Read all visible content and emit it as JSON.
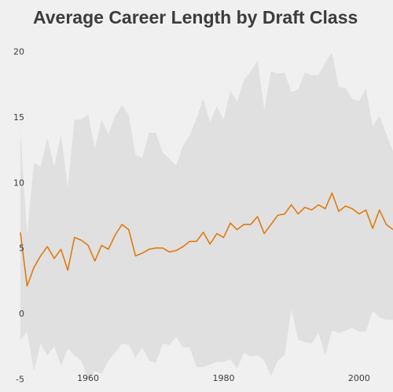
{
  "chart_data": {
    "type": "area",
    "title": "Average Career Length by Draft Class",
    "xlabel": "",
    "ylabel": "",
    "xlim": [
      1947,
      2005
    ],
    "ylim": [
      -6,
      21
    ],
    "xticks": [
      1960,
      1980,
      2000
    ],
    "yticks": [
      -5,
      0,
      5,
      10,
      15,
      20
    ],
    "grid": false,
    "legend": "none",
    "colors": {
      "background": "#f0f0f0",
      "band": "#e0e0e0",
      "line": "#e07a10",
      "text": "#3c3c3c"
    },
    "x": [
      1950,
      1951,
      1952,
      1953,
      1954,
      1955,
      1956,
      1957,
      1958,
      1959,
      1960,
      1961,
      1962,
      1963,
      1964,
      1965,
      1966,
      1967,
      1968,
      1969,
      1970,
      1971,
      1972,
      1973,
      1974,
      1975,
      1976,
      1977,
      1978,
      1979,
      1980,
      1981,
      1982,
      1983,
      1984,
      1985,
      1986,
      1987,
      1988,
      1989,
      1990,
      1991,
      1992,
      1993,
      1994,
      1995,
      1996,
      1997,
      1998,
      1999,
      2000,
      2001,
      2002,
      2003,
      2004,
      2005
    ],
    "series": [
      {
        "values": [
          6.2,
          2.1,
          3.5,
          4.4,
          5.1,
          4.2,
          4.9,
          3.3,
          5.8,
          5.6,
          5.2,
          4.0,
          5.2,
          4.9,
          6.0,
          6.8,
          6.4,
          4.4,
          4.6,
          4.9,
          5.0,
          5.0,
          4.7,
          4.8,
          5.1,
          5.5,
          5.5,
          6.2,
          5.3,
          6.1,
          5.8,
          6.9,
          6.4,
          6.8,
          6.8,
          7.4,
          6.1,
          6.8,
          7.5,
          7.6,
          8.3,
          7.6,
          8.1,
          7.9,
          8.3,
          8.0,
          9.2,
          7.8,
          8.2,
          8.0,
          7.6,
          7.9,
          6.5,
          7.9,
          6.8,
          6.4
        ],
        "upper": [
          14.0,
          6.0,
          11.5,
          11.2,
          13.4,
          11.2,
          13.7,
          9.6,
          14.8,
          14.8,
          15.2,
          12.6,
          14.8,
          13.7,
          15.1,
          15.9,
          15.2,
          12.1,
          11.9,
          13.8,
          13.8,
          12.3,
          11.8,
          11.3,
          12.8,
          13.6,
          14.9,
          16.4,
          14.6,
          15.8,
          14.8,
          17.0,
          16.2,
          17.8,
          18.5,
          19.3,
          15.6,
          18.5,
          18.3,
          18.4,
          16.9,
          17.1,
          18.4,
          18.2,
          18.2,
          19.2,
          19.9,
          17.3,
          17.2,
          16.4,
          16.2,
          17.2,
          14.3,
          15.1,
          13.7,
          12.4
        ],
        "lower": [
          -2.0,
          -1.4,
          -4.4,
          -2.3,
          -3.2,
          -2.5,
          -4.0,
          -2.7,
          -3.2,
          -3.6,
          -5.0,
          -4.4,
          -4.6,
          -3.6,
          -3.0,
          -2.3,
          -2.4,
          -3.4,
          -2.6,
          -3.6,
          -3.8,
          -2.3,
          -2.4,
          -1.8,
          -2.6,
          -2.6,
          -4.1,
          -4.1,
          -3.9,
          -3.7,
          -3.7,
          -3.5,
          -4.2,
          -3.0,
          -3.3,
          -3.2,
          -3.6,
          -4.8,
          -3.6,
          -3.2,
          0.3,
          -2.0,
          -2.2,
          -2.3,
          -1.5,
          -3.2,
          -1.3,
          -1.5,
          -1.3,
          -1.1,
          -1.4,
          -1.4,
          0.2,
          -0.3,
          -0.5,
          -0.5
        ]
      }
    ]
  }
}
